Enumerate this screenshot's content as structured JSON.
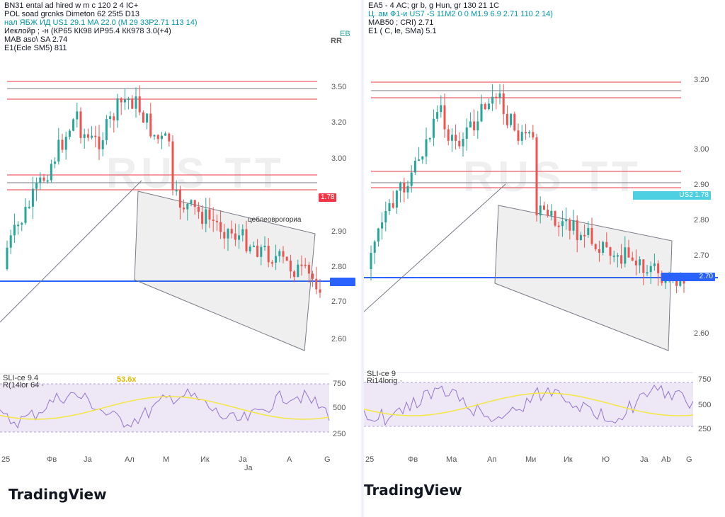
{
  "colors": {
    "up": "#26a69a",
    "down": "#ef5350",
    "hline_red": "#f23645",
    "hline_blue": "#2962ff",
    "channel": "#787b86",
    "channel_pink": "#f7a9c1",
    "rsi_line": "#f5e642",
    "rsi_band": "#ede7f6",
    "ma_cyan": "#4dd0e1"
  },
  "left": {
    "legend": [
      "BN31 ental ad hired w m c 120 2 4 IC+",
      "POL soad grcnks Dimeton 62 25t5 D13",
      "нал ЯБЖ ИД US1 29.1 MA 22.0 (M 29 33P2.71 113 14)",
      "Иеклойр ; -н (КР65 КК98 ИР95.4 КК978 3.0(+4)",
      "MAB aso\\ SA 2.74",
      "E1(Ecle SM5) 811"
    ],
    "legend_badge_r": "RR",
    "legend_badge_b": "ЕВ",
    "price_axis": [
      "3.50",
      "3.20",
      "3.00",
      "2.90",
      "2.80",
      "2.70",
      "2.60"
    ],
    "osc_axis": [
      "750",
      "500",
      "250"
    ],
    "osc_legend": [
      "SLI-ce 9.4",
      "R(14lor 64 ·",
      "53.6x"
    ],
    "time_axis": [
      "25",
      "Фв",
      "Ja",
      "Ал",
      "М",
      "Ик",
      "Ja",
      "Ja",
      "А",
      "G"
    ],
    "tag_red": "1.78",
    "tag_blue": "",
    "annotation": "цеблеоврогориа",
    "watermark": "RUS ТТ"
  },
  "right": {
    "legend": [
      "ЕА5 - 4 АС; gr b, g Hun, gr 130 21 1C",
      "Ц. ам Ф1-и US7 -S 11М2 0 0 М1.9 6.9 2.71 110 2 14)",
      "MAB50 ; CRI) 2.71",
      "Е1 ( С, le, SMa) 5.1"
    ],
    "price_axis": [
      "3.20",
      "3.00",
      "2.90",
      "2.80",
      "2.70",
      "2.60"
    ],
    "osc_axis": [
      "750",
      "500",
      "250"
    ],
    "osc_legend": [
      "SLI-ce 9",
      "Ri14lorig ·"
    ],
    "time_axis": [
      "25",
      "Фв",
      "Ма",
      "Ап",
      "Ми",
      "Ик",
      "Ю",
      "Ja",
      "Ab",
      "G"
    ],
    "tag_cyan": "US2 1.78",
    "tag_blue": "2.70",
    "watermark": "RUS ТТ"
  },
  "logo": "TradingView"
}
